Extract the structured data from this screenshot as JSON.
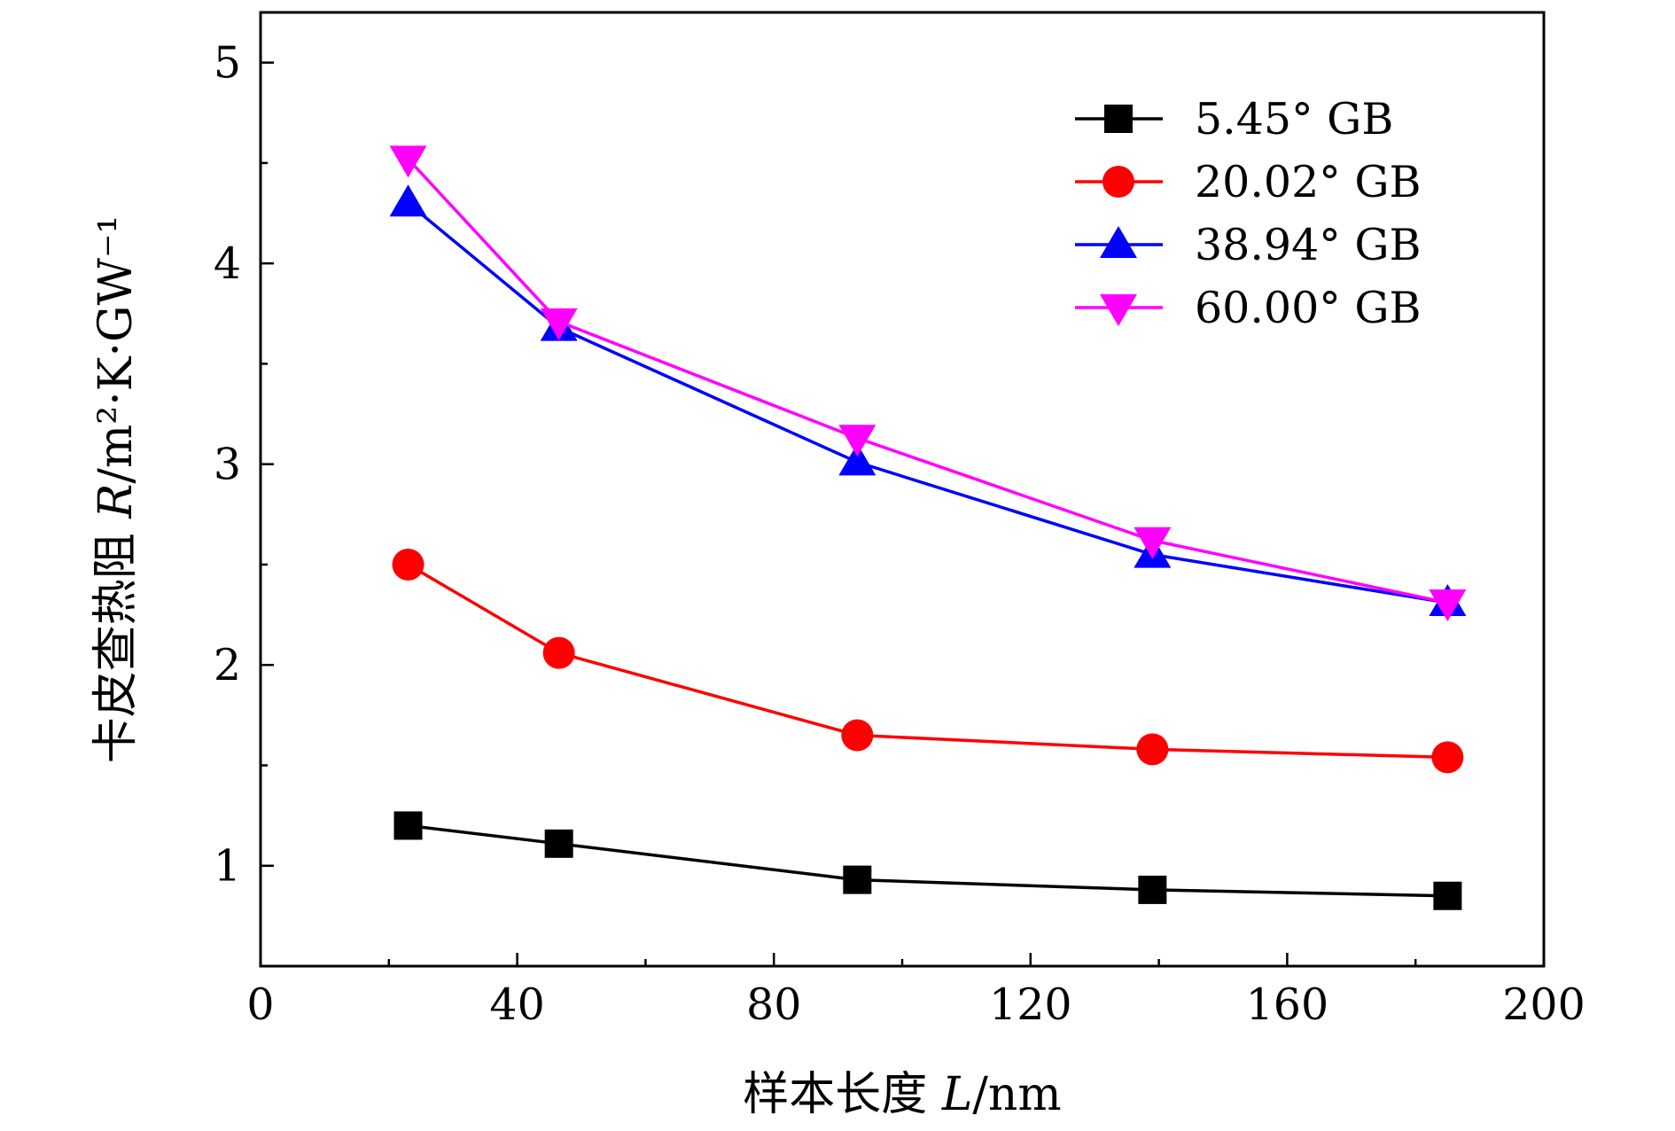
{
  "chart_data": {
    "type": "line",
    "xlabel": {
      "prefix": "样本长度 ",
      "var": "L",
      "unit": "/nm"
    },
    "ylabel": {
      "prefix": "卡皮查热阻 ",
      "var": "R",
      "unit": "/m²·K·GW⁻¹"
    },
    "xlim": [
      0,
      200
    ],
    "ylim": [
      0.5,
      5.25
    ],
    "x_ticks": [
      0,
      40,
      80,
      120,
      160,
      200
    ],
    "x_ticks_minor": [
      20,
      60,
      100,
      140,
      180
    ],
    "y_ticks": [
      1,
      2,
      3,
      4,
      5
    ],
    "y_ticks_minor": [
      1.5,
      2.5,
      3.5,
      4.5
    ],
    "grid": false,
    "legend_position": "top-right",
    "x": [
      23,
      46.5,
      93,
      139,
      185
    ],
    "series": [
      {
        "name": "5.45° GB",
        "color": "#000000",
        "marker": "square",
        "values": [
          1.2,
          1.11,
          0.93,
          0.88,
          0.85
        ]
      },
      {
        "name": "20.02° GB",
        "color": "#ff0000",
        "marker": "circle",
        "values": [
          2.5,
          2.06,
          1.65,
          1.58,
          1.54
        ]
      },
      {
        "name": "38.94° GB",
        "color": "#0000ff",
        "marker": "triangle-up",
        "values": [
          4.3,
          3.68,
          3.01,
          2.55,
          2.31
        ]
      },
      {
        "name": "60.00° GB",
        "color": "#ff00ff",
        "marker": "triangle-down",
        "values": [
          4.52,
          3.71,
          3.13,
          2.62,
          2.31
        ]
      }
    ]
  }
}
